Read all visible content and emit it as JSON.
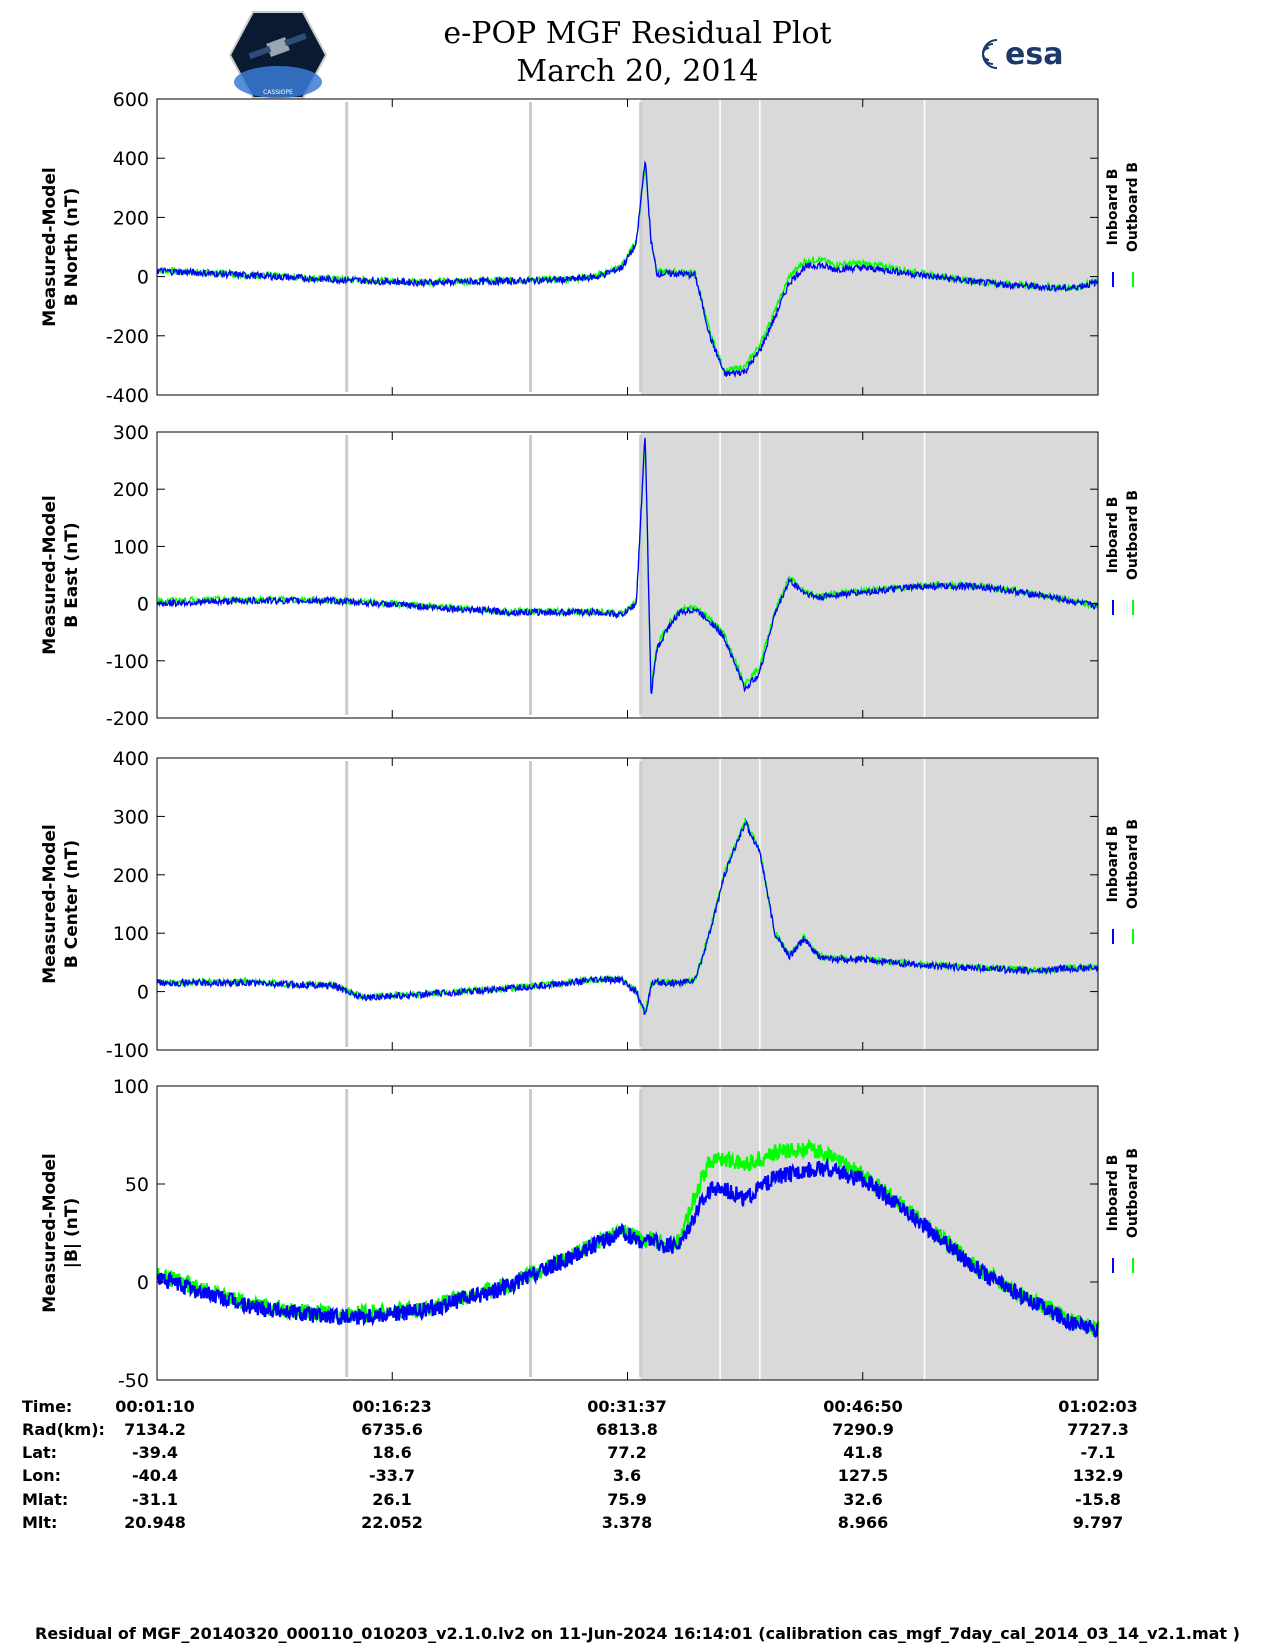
{
  "header": {
    "title": "e-POP MGF Residual Plot",
    "date": "March 20, 2014",
    "logo_left_text": "CASSIOPE",
    "logo_right_text": "esa"
  },
  "chart_data": [
    {
      "type": "line",
      "ylabel_line1": "Measured-Model",
      "ylabel_line2": "B North (nT)",
      "ylim": [
        -400,
        600
      ],
      "yticks": [
        600,
        400,
        200,
        0,
        -200,
        -400
      ],
      "legend": [
        "Inboard B",
        "Outboard B"
      ],
      "series": [
        {
          "name": "Inboard B",
          "color": "#0000ff",
          "x": [
            0,
            3,
            6,
            9,
            12,
            14,
            15,
            15.8,
            16.3,
            16.6,
            16.8,
            17.0,
            17.4,
            17.8,
            18.3,
            18.8,
            19.3,
            20.0,
            20.5,
            21.0,
            21.5,
            22,
            22.5,
            23,
            24,
            25,
            26,
            28,
            30,
            31,
            32
          ],
          "values": [
            20,
            5,
            -10,
            -20,
            -15,
            -10,
            0,
            30,
            110,
            400,
            120,
            10,
            10,
            10,
            5,
            -200,
            -330,
            -320,
            -250,
            -140,
            -20,
            30,
            40,
            25,
            30,
            20,
            5,
            -20,
            -35,
            -40,
            -20
          ]
        },
        {
          "name": "Outboard B",
          "color": "#00ff00",
          "x": [
            0,
            3,
            6,
            9,
            12,
            14,
            15,
            15.8,
            16.3,
            16.6,
            16.8,
            17.0,
            17.4,
            17.8,
            18.3,
            18.8,
            19.3,
            20.0,
            20.5,
            21.0,
            21.5,
            22,
            22.5,
            23,
            24,
            25,
            26,
            28,
            30,
            31,
            32
          ],
          "values": [
            22,
            7,
            -8,
            -18,
            -13,
            -8,
            3,
            35,
            120,
            380,
            130,
            15,
            15,
            15,
            10,
            -190,
            -320,
            -305,
            -230,
            -120,
            0,
            50,
            60,
            40,
            45,
            30,
            10,
            -18,
            -33,
            -38,
            -18
          ]
        }
      ]
    },
    {
      "type": "line",
      "ylabel_line1": "Measured-Model",
      "ylabel_line2": "B East (nT)",
      "ylim": [
        -200,
        300
      ],
      "yticks": [
        300,
        200,
        100,
        0,
        -100,
        -200
      ],
      "legend": [
        "Inboard B",
        "Outboard B"
      ],
      "series": [
        {
          "name": "Inboard B",
          "color": "#0000ff",
          "x": [
            0,
            3,
            6,
            9,
            12,
            14,
            15,
            15.8,
            16.3,
            16.6,
            16.8,
            17.0,
            17.4,
            17.8,
            18.3,
            18.8,
            19.3,
            20.0,
            20.5,
            21.0,
            21.5,
            22,
            22.5,
            23,
            24,
            25,
            26,
            28,
            30,
            31,
            32
          ],
          "values": [
            0,
            5,
            5,
            -5,
            -15,
            -15,
            -15,
            -20,
            0,
            300,
            -160,
            -80,
            -40,
            -15,
            -10,
            -30,
            -60,
            -150,
            -120,
            -20,
            40,
            20,
            10,
            15,
            20,
            25,
            30,
            30,
            15,
            5,
            -5
          ]
        },
        {
          "name": "Outboard B",
          "color": "#00ff00",
          "x": [
            0,
            3,
            6,
            9,
            12,
            14,
            15,
            15.8,
            16.3,
            16.6,
            16.8,
            17.0,
            17.4,
            17.8,
            18.3,
            18.8,
            19.3,
            20.0,
            20.5,
            21.0,
            21.5,
            22,
            22.5,
            23,
            24,
            25,
            26,
            28,
            30,
            31,
            32
          ],
          "values": [
            5,
            7,
            6,
            -4,
            -14,
            -14,
            -14,
            -18,
            2,
            290,
            -150,
            -75,
            -35,
            -12,
            -8,
            -25,
            -55,
            -140,
            -110,
            -15,
            45,
            22,
            12,
            17,
            22,
            27,
            32,
            31,
            16,
            6,
            -4
          ]
        }
      ]
    },
    {
      "type": "line",
      "ylabel_line1": "Measured-Model",
      "ylabel_line2": "B Center (nT)",
      "ylim": [
        -100,
        400
      ],
      "yticks": [
        400,
        300,
        200,
        100,
        0,
        -100
      ],
      "legend": [
        "Inboard B",
        "Outboard B"
      ],
      "series": [
        {
          "name": "Inboard B",
          "color": "#0000ff",
          "x": [
            0,
            3,
            6,
            7,
            9,
            12,
            14,
            15,
            15.8,
            16.3,
            16.6,
            16.8,
            17.0,
            17.4,
            17.8,
            18.3,
            18.8,
            19.3,
            20.0,
            20.5,
            21.0,
            21.5,
            22,
            22.5,
            23,
            24,
            25,
            26,
            28,
            30,
            31,
            32
          ],
          "values": [
            15,
            15,
            10,
            -10,
            -5,
            5,
            15,
            20,
            20,
            0,
            -40,
            10,
            15,
            15,
            15,
            20,
            100,
            200,
            290,
            240,
            100,
            60,
            90,
            60,
            55,
            55,
            50,
            45,
            40,
            35,
            40,
            40
          ]
        },
        {
          "name": "Outboard B",
          "color": "#00ff00",
          "x": [
            0,
            3,
            6,
            7,
            9,
            12,
            14,
            15,
            15.8,
            16.3,
            16.6,
            16.8,
            17.0,
            17.4,
            17.8,
            18.3,
            18.8,
            19.3,
            20.0,
            20.5,
            21.0,
            21.5,
            22,
            22.5,
            23,
            24,
            25,
            26,
            28,
            30,
            31,
            32
          ],
          "values": [
            17,
            16,
            11,
            -9,
            -4,
            6,
            16,
            21,
            21,
            1,
            -38,
            11,
            16,
            16,
            16,
            21,
            102,
            203,
            293,
            243,
            102,
            62,
            92,
            62,
            57,
            56,
            51,
            46,
            41,
            36,
            41,
            41
          ]
        }
      ]
    },
    {
      "type": "line",
      "ylabel_line1": "Measured-Model",
      "ylabel_line2": "|B| (nT)",
      "ylim": [
        -50,
        100
      ],
      "yticks": [
        100,
        50,
        0,
        -50
      ],
      "legend": [
        "Inboard B",
        "Outboard B"
      ],
      "series": [
        {
          "name": "Inboard B",
          "color": "#0000ff",
          "x": [
            0,
            3,
            6,
            9,
            12,
            14,
            15,
            15.8,
            16.3,
            16.6,
            16.8,
            17.0,
            17.4,
            17.8,
            18.3,
            18.8,
            19.3,
            20.0,
            20.5,
            21.0,
            21.5,
            22,
            22.5,
            23,
            24,
            25,
            26,
            28,
            30,
            31,
            32
          ],
          "values": [
            2,
            -12,
            -18,
            -15,
            -2,
            12,
            20,
            25,
            22,
            20,
            22,
            20,
            18,
            20,
            35,
            47,
            48,
            42,
            48,
            53,
            55,
            57,
            58,
            57,
            52,
            42,
            30,
            5,
            -12,
            -20,
            -25
          ]
        },
        {
          "name": "Outboard B",
          "color": "#00ff00",
          "x": [
            0,
            3,
            6,
            9,
            12,
            14,
            15,
            15.8,
            16.3,
            16.6,
            16.8,
            17.0,
            17.4,
            17.8,
            18.3,
            18.8,
            19.3,
            20.0,
            20.5,
            21.0,
            21.5,
            22,
            22.5,
            23,
            24,
            25,
            26,
            28,
            30,
            31,
            32
          ],
          "values": [
            4,
            -11,
            -17,
            -14,
            -1,
            13,
            21,
            26,
            23,
            21,
            23,
            21,
            19,
            21,
            45,
            62,
            63,
            60,
            63,
            66,
            67,
            68,
            67,
            63,
            55,
            43,
            31,
            6,
            -11,
            -19,
            -24
          ]
        }
      ]
    }
  ],
  "x_axis": {
    "xlim": [
      0,
      32
    ],
    "xticks": [
      0,
      8,
      16,
      24,
      32
    ],
    "shade_start": 16.45,
    "shade_end": 32,
    "markers_gray": [
      6.45,
      12.7,
      16.45
    ],
    "markers_white": [
      19.15,
      20.5,
      26.1
    ]
  },
  "info": {
    "labels": [
      "Time:",
      "Rad(km):",
      "Lat:",
      "Lon:",
      "Mlat:",
      "Mlt:"
    ],
    "columns": [
      [
        "00:01:10",
        "7134.2",
        "-39.4",
        "-40.4",
        "-31.1",
        "20.948"
      ],
      [
        "00:16:23",
        "6735.6",
        "18.6",
        "-33.7",
        "26.1",
        "22.052"
      ],
      [
        "00:31:37",
        "6813.8",
        "77.2",
        "3.6",
        "75.9",
        "3.378"
      ],
      [
        "00:46:50",
        "7290.9",
        "41.8",
        "127.5",
        "32.6",
        "8.966"
      ],
      [
        "01:02:03",
        "7727.3",
        "-7.1",
        "132.9",
        "-15.8",
        "9.797"
      ]
    ]
  },
  "footer": "Residual of MGF_20140320_000110_010203_v2.1.0.lv2 on 11-Jun-2024 16:14:01 (calibration cas_mgf_7day_cal_2014_03_14_v2.1.mat )"
}
